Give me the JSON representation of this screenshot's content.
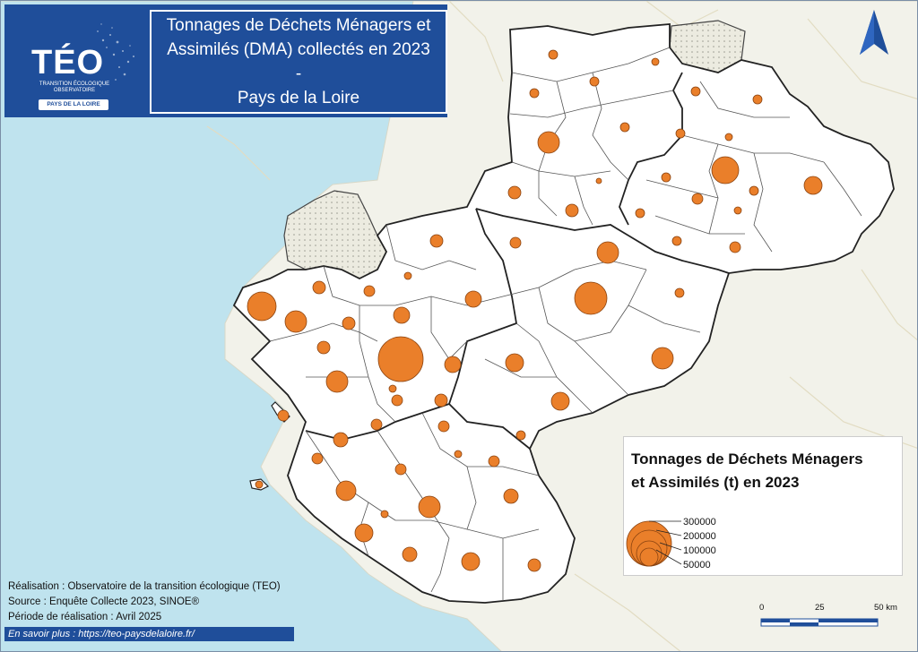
{
  "header": {
    "logo_text": "TÉO",
    "logo_sub_line1": "TRANSITION ÉCOLOGIQUE",
    "logo_sub_line2": "OBSERVATOIRE",
    "logo_region": "PAYS DE LA LOIRE",
    "title_line1": "Tonnages de Déchets Ménagers et",
    "title_line2": "Assimilés (DMA) collectés en 2023 -",
    "title_line3": "Pays de la Loire"
  },
  "legend": {
    "title_line1": "Tonnages de Déchets Ménagers",
    "title_line2": "et Assimilés (t) en 2023",
    "values": [
      300000,
      200000,
      100000,
      50000
    ],
    "labels": [
      "300000",
      "200000",
      "100000",
      "50000"
    ]
  },
  "credits": {
    "line1": "Réalisation : Observatoire de la transition écologique (TEO)",
    "line2": "Source : Enquête Collecte 2023, SINOE®",
    "line3": "Période de réalisation : Avril 2025"
  },
  "link": {
    "text": "En savoir plus : https://teo-paysdelaloire.fr/"
  },
  "scale": {
    "labels": [
      "0",
      "25",
      "50 km"
    ]
  },
  "colors": {
    "sea": "#bfe3ee",
    "land_outside": "#f2f2ea",
    "region": "#ffffff",
    "circle_fill": "#ea7f2a",
    "circle_stroke": "#8a4310",
    "header_blue": "#1f4e9a"
  },
  "icons": {
    "north": "north-arrow-icon",
    "logo": "teo-logo"
  }
}
